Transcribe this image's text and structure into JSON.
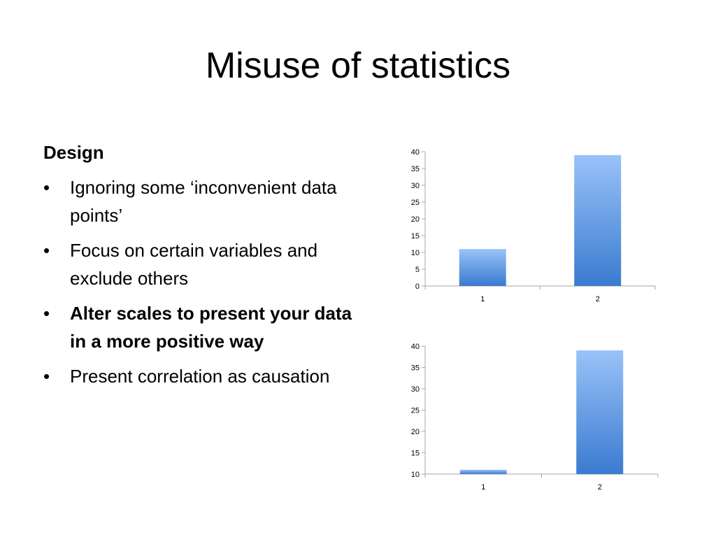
{
  "slide": {
    "title": "Misuse of statistics",
    "heading": "Design",
    "bullet_symbol": "•",
    "bullets": [
      {
        "text": "Ignoring some ‘inconvenient data points’",
        "bold": false
      },
      {
        "text": "Focus on certain variables and exclude others",
        "bold": false
      },
      {
        "text": "Alter scales to present your data in a more positive way",
        "bold": true
      },
      {
        "text": "Present correlation as causation",
        "bold": false
      }
    ]
  },
  "colors": {
    "bar_top": "#99C2F8",
    "bar_bottom": "#3A7BD0",
    "axis": "#A6A6A6"
  },
  "chart_data": [
    {
      "type": "bar",
      "categories": [
        "1",
        "2"
      ],
      "values": [
        11,
        39
      ],
      "ylim": [
        0,
        40
      ],
      "yticks": [
        0,
        5,
        10,
        15,
        20,
        25,
        30,
        35,
        40
      ],
      "title": "",
      "xlabel": "",
      "ylabel": "",
      "grid": false
    },
    {
      "type": "bar",
      "categories": [
        "1",
        "2"
      ],
      "values": [
        11,
        39
      ],
      "ylim": [
        10,
        40
      ],
      "yticks": [
        10,
        15,
        20,
        25,
        30,
        35,
        40
      ],
      "title": "",
      "xlabel": "",
      "ylabel": "",
      "grid": false
    }
  ]
}
